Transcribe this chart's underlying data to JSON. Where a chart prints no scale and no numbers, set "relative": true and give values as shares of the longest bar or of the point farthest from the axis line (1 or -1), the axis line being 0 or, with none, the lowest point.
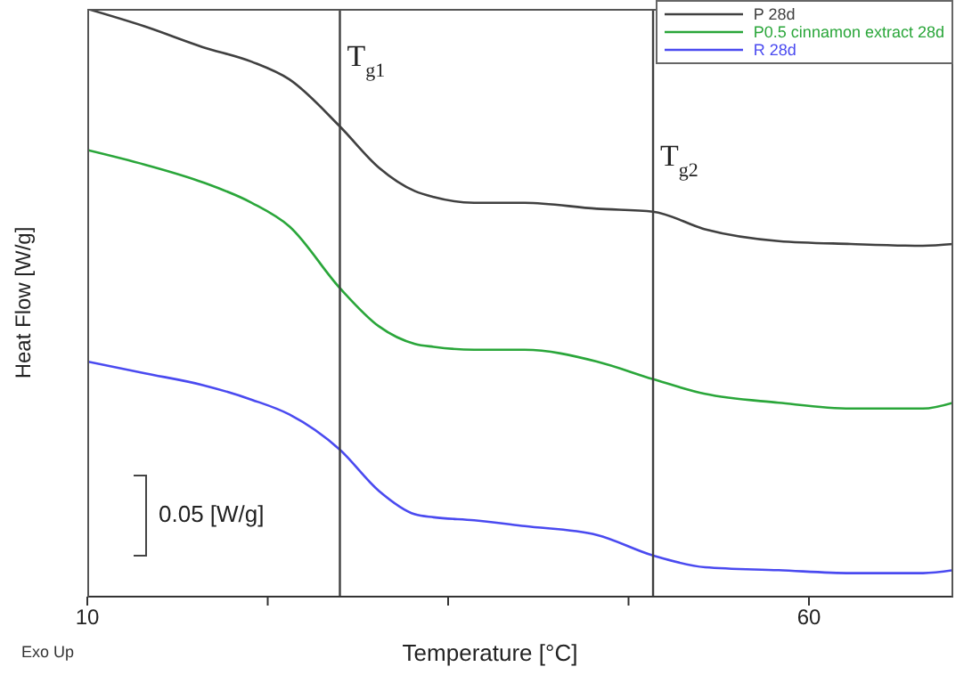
{
  "chart_data": {
    "type": "line",
    "relative": true,
    "xlabel": "Temperature [°C]",
    "ylabel": "Heat Flow [W/g]",
    "x": [
      10,
      14,
      18,
      21.4,
      24,
      27.5,
      30.2,
      32.7,
      34,
      36.8,
      40.3,
      45.3,
      49.2,
      52.8,
      57.9,
      62.9,
      67.9,
      70
    ],
    "xlim": [
      10,
      70
    ],
    "xticks": [
      10,
      {
        "value": 22.5,
        "label": null
      },
      {
        "value": 35,
        "label": null
      },
      {
        "value": 47.5,
        "label": null
      },
      60
    ],
    "series": [
      {
        "name": "P 28d",
        "color": "#404040",
        "values": [
          1.0,
          0.97,
          0.935,
          0.91,
          0.88,
          0.8,
          0.73,
          0.69,
          0.68,
          0.67,
          0.67,
          0.66,
          0.655,
          0.625,
          0.605,
          0.6,
          0.597,
          0.6
        ]
      },
      {
        "name": "P0.5 cinnamon extract 28d",
        "color": "#2aa63a",
        "values": [
          0.76,
          0.735,
          0.705,
          0.67,
          0.63,
          0.525,
          0.46,
          0.43,
          0.425,
          0.42,
          0.42,
          0.4,
          0.37,
          0.345,
          0.33,
          0.32,
          0.32,
          0.33
        ]
      },
      {
        "name": "R 28d",
        "color": "#4a4af0",
        "values": [
          0.4,
          0.38,
          0.36,
          0.335,
          0.31,
          0.25,
          0.18,
          0.14,
          0.135,
          0.13,
          0.12,
          0.105,
          0.07,
          0.05,
          0.045,
          0.04,
          0.04,
          0.045
        ]
      }
    ],
    "ref_lines": [
      {
        "axis": "x",
        "value": 27.5,
        "label": "T$_{g1}$",
        "color": "#404040"
      },
      {
        "axis": "x",
        "value": 49.2,
        "label": "T$_{g2}$",
        "color": "#404040"
      }
    ],
    "annotations": [
      "0.05 [W/g]",
      "Exo Up"
    ],
    "legend": "top right"
  }
}
